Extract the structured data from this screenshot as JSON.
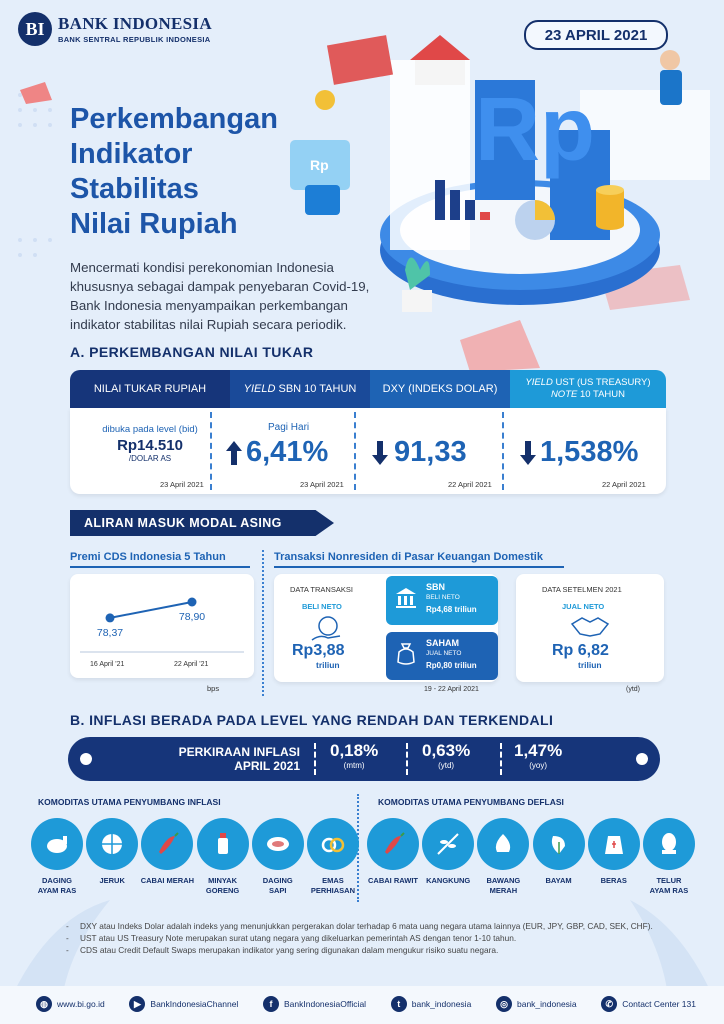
{
  "header": {
    "logo_mark": "BI",
    "bank_name": "BANK INDONESIA",
    "bank_sub": "BANK SENTRAL REPUBLIK INDONESIA",
    "date": "23 APRIL 2021"
  },
  "title": [
    "Perkembangan",
    "Indikator",
    "Stabilitas",
    "Nilai Rupiah"
  ],
  "intro": "Mencermati kondisi perekonomian Indonesia khususnya sebagai dampak penyebaran Covid-19, Bank Indonesia menyampaikan perkembangan indikator stabilitas nilai Rupiah secara periodik.",
  "illustration": {
    "rp_text": "Rp"
  },
  "section_a": {
    "title": "A. PERKEMBANGAN NILAI TUKAR",
    "headers": [
      {
        "a": "NILAI TUKAR RUPIAH",
        "b": ""
      },
      {
        "a": "YIELD",
        "b": " SBN 10 TAHUN"
      },
      {
        "a": "DXY (INDEKS DOLAR)",
        "b": ""
      },
      {
        "a": "YIELD",
        "b": " UST (US TREASURY)",
        "c": "NOTE",
        "d": " 10 TAHUN"
      }
    ],
    "rupiah": {
      "label": "dibuka pada level (bid)",
      "value": "Rp14.510",
      "unit": "/DOLAR AS",
      "date": "23 April 2021"
    },
    "sbn": {
      "label": "Pagi Hari",
      "value": "6,41%",
      "date": "23 April 2021",
      "direction": "up"
    },
    "dxy": {
      "value": "91,33",
      "date": "22 April 2021",
      "direction": "down"
    },
    "ust": {
      "value": "1,538%",
      "date": "22 April 2021",
      "direction": "down"
    }
  },
  "capital": {
    "ribbon": "ALIRAN MASUK MODAL ASING",
    "cds": {
      "title": "Premi CDS Indonesia 5 Tahun",
      "unit": "bps",
      "points": [
        {
          "label": "16 April '21",
          "value": 78.37,
          "text": "78,37"
        },
        {
          "label": "22 April '21",
          "value": 78.9,
          "text": "78,90"
        }
      ]
    },
    "nonres": {
      "title": "Transaksi Nonresiden di Pasar Keuangan Domestik",
      "trans_label": "DATA TRANSAKSI",
      "beli": "BELI NETO",
      "total": "Rp3,88",
      "unit": "triliun",
      "sbn": {
        "name": "SBN",
        "type": "BELI NETO",
        "value": "Rp4,68 triliun"
      },
      "saham": {
        "name": "SAHAM",
        "type": "JUAL NETO",
        "value": "Rp0,80 triliun"
      },
      "date": "19 - 22 April 2021",
      "settle_label": "DATA SETELMEN 2021",
      "jual": "JUAL NETO",
      "settle_value": "Rp 6,82",
      "settle_unit": "triliun",
      "ytd": "(ytd)"
    }
  },
  "section_b": {
    "title": "B. INFLASI BERADA PADA LEVEL YANG RENDAH DAN TERKENDALI",
    "bar_label": [
      "PERKIRAAN INFLASI",
      "APRIL 2021"
    ],
    "values": [
      {
        "v": "0,18%",
        "p": "(mtm)"
      },
      {
        "v": "0,63%",
        "p": "(ytd)"
      },
      {
        "v": "1,47%",
        "p": "(yoy)"
      }
    ],
    "inflasi_title": "KOMODITAS UTAMA PENYUMBANG INFLASI",
    "deflasi_title": "KOMODITAS UTAMA PENYUMBANG DEFLASI",
    "inflasi": [
      {
        "l1": "DAGING",
        "l2": "AYAM RAS",
        "icon": "chicken-icon"
      },
      {
        "l1": "JERUK",
        "l2": "",
        "icon": "orange-icon"
      },
      {
        "l1": "CABAI MERAH",
        "l2": "",
        "icon": "chili-icon"
      },
      {
        "l1": "MINYAK",
        "l2": "GORENG",
        "icon": "oil-bottle-icon"
      },
      {
        "l1": "DAGING",
        "l2": "SAPI",
        "icon": "beef-icon"
      },
      {
        "l1": "EMAS",
        "l2": "PERHIASAN",
        "icon": "ring-icon"
      }
    ],
    "deflasi": [
      {
        "l1": "CABAI RAWIT",
        "l2": "",
        "icon": "chili-icon"
      },
      {
        "l1": "KANGKUNG",
        "l2": "",
        "icon": "vegetable-icon"
      },
      {
        "l1": "BAWANG",
        "l2": "MERAH",
        "icon": "onion-icon"
      },
      {
        "l1": "BAYAM",
        "l2": "",
        "icon": "spinach-icon"
      },
      {
        "l1": "BERAS",
        "l2": "",
        "icon": "rice-sack-icon"
      },
      {
        "l1": "TELUR",
        "l2": "AYAM RAS",
        "icon": "egg-icon"
      }
    ]
  },
  "notes": [
    "DXY atau Indeks Dolar adalah indeks yang menunjukkan pergerakan dolar terhadap 6 mata uang negara utama lainnya (EUR, JPY, GBP, CAD, SEK, CHF).",
    "UST atau US Treasury Note merupakan surat utang negara yang dikeluarkan pemerintah AS dengan tenor 1-10 tahun.",
    "CDS atau Credit Default Swaps merupakan indikator yang sering digunakan dalam mengukur risiko suatu negara."
  ],
  "footer": [
    {
      "icon": "globe-icon",
      "glyph": "◍",
      "text": "www.bi.go.id"
    },
    {
      "icon": "youtube-icon",
      "glyph": "▶",
      "text": "BankIndonesiaChannel"
    },
    {
      "icon": "facebook-icon",
      "glyph": "f",
      "text": "BankIndonesiaOfficial"
    },
    {
      "icon": "twitter-icon",
      "glyph": "t",
      "text": "bank_indonesia"
    },
    {
      "icon": "instagram-icon",
      "glyph": "◎",
      "text": "bank_indonesia"
    },
    {
      "icon": "phone-icon",
      "glyph": "✆",
      "text": "Contact Center 131"
    }
  ],
  "colors": {
    "navy": "#14306b",
    "blue": "#1e63b4",
    "cyan": "#1e9ad8",
    "bg": "#e4eefa"
  }
}
